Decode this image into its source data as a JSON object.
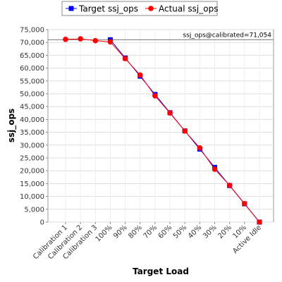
{
  "chart_data": {
    "type": "line",
    "xlabel": "Target Load",
    "ylabel": "ssj_ops",
    "categories": [
      "Calibration 1",
      "Calibration 2",
      "Calibration 3",
      "100%",
      "90%",
      "80%",
      "70%",
      "60%",
      "50%",
      "40%",
      "30%",
      "20%",
      "10%",
      "Active Idle"
    ],
    "series": [
      {
        "name": "Target ssj_ops",
        "color": "#0000ff",
        "marker": "square",
        "values": [
          null,
          null,
          null,
          71054,
          63949,
          56843,
          49738,
          42632,
          35527,
          28422,
          21316,
          14211,
          7105,
          0
        ]
      },
      {
        "name": "Actual ssj_ops",
        "color": "#ff0000",
        "marker": "circle",
        "values": [
          71200,
          71400,
          70700,
          70200,
          63700,
          57300,
          49200,
          42500,
          35500,
          28900,
          20600,
          14300,
          7200,
          0
        ]
      }
    ],
    "reference_line": {
      "value": 71054,
      "label": "ssj_ops@calibrated=71,054"
    },
    "ylim": [
      0,
      75000
    ],
    "yticks": [
      0,
      {
        "value": 5000,
        "label": "5,000"
      },
      {
        "value": 10000,
        "label": "10,000"
      },
      {
        "value": 15000,
        "label": "15,000"
      },
      {
        "value": 20000,
        "label": "20,000"
      },
      {
        "value": 25000,
        "label": "25,000"
      },
      {
        "value": 30000,
        "label": "30,000"
      },
      {
        "value": 35000,
        "label": "35,000"
      },
      {
        "value": 40000,
        "label": "40,000"
      },
      {
        "value": 45000,
        "label": "45,000"
      },
      {
        "value": 50000,
        "label": "50,000"
      },
      {
        "value": 55000,
        "label": "55,000"
      },
      {
        "value": 60000,
        "label": "60,000"
      },
      {
        "value": 65000,
        "label": "65,000"
      },
      {
        "value": 70000,
        "label": "70,000"
      },
      {
        "value": 75000,
        "label": "75,000"
      }
    ],
    "grid": true
  }
}
